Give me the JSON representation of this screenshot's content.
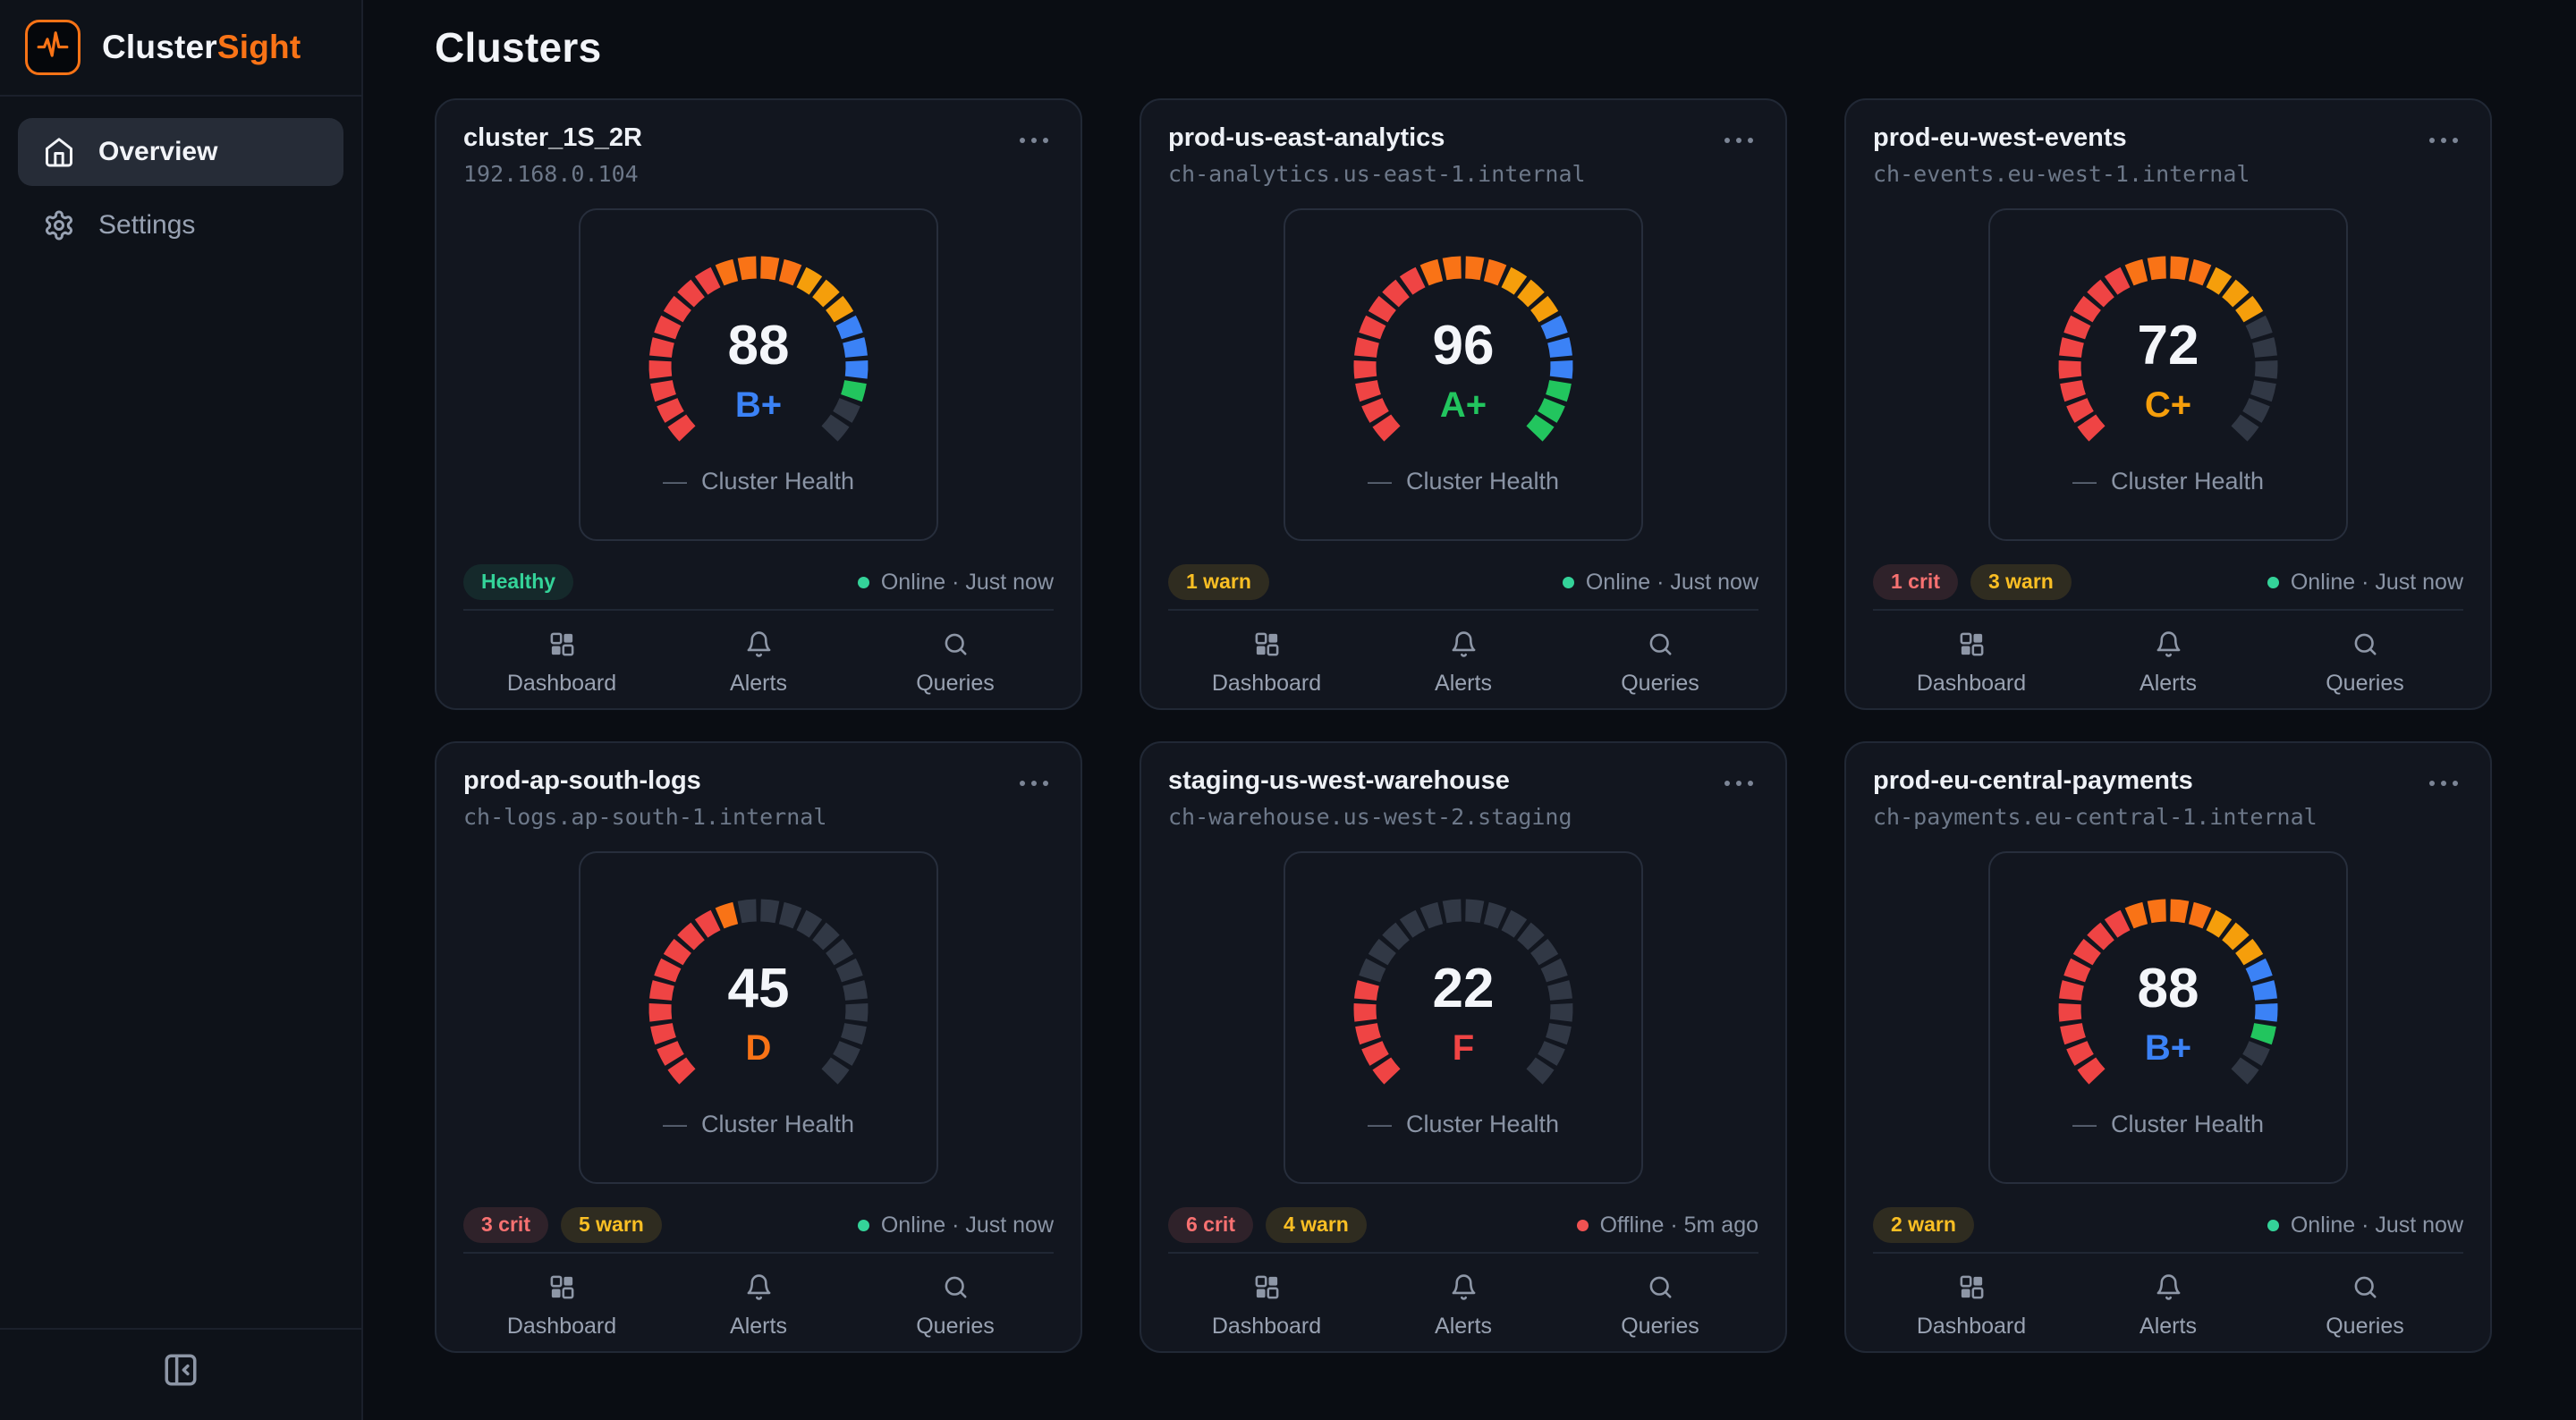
{
  "brand": {
    "name_primary": "Cluster",
    "name_accent": "Sight",
    "accent_color": "#f97316"
  },
  "page": {
    "title": "Clusters"
  },
  "sidebar": {
    "items": [
      {
        "label": "Overview",
        "icon": "home-icon",
        "active": true
      },
      {
        "label": "Settings",
        "icon": "gear-icon",
        "active": false
      }
    ]
  },
  "gauge": {
    "legend_dash": "—",
    "legend": "Cluster Health",
    "segments": 22,
    "arc_degrees": 270,
    "zone_colors": {
      "red": "#ef4444",
      "orange": "#f97316",
      "amber": "#f59e0b",
      "blue": "#3b82f6",
      "green": "#22c55e",
      "empty": "#313845"
    },
    "zone_stops": [
      {
        "until": 0.4,
        "color": "red"
      },
      {
        "until": 0.58,
        "color": "orange"
      },
      {
        "until": 0.72,
        "color": "amber"
      },
      {
        "until": 0.86,
        "color": "blue"
      },
      {
        "until": 1.01,
        "color": "green"
      }
    ]
  },
  "grade_colors": {
    "A+": "#22c55e",
    "B+": "#3b82f6",
    "C+": "#f59e0b",
    "D": "#f97316",
    "F": "#ef4444"
  },
  "status_colors": {
    "online": "#34d399",
    "offline": "#f05252"
  },
  "actions": [
    {
      "label": "Dashboard",
      "icon": "dashboard-icon"
    },
    {
      "label": "Alerts",
      "icon": "bell-icon"
    },
    {
      "label": "Queries",
      "icon": "search-icon"
    }
  ],
  "clusters": [
    {
      "name": "cluster_1S_2R",
      "host": "192.168.0.104",
      "score": 88,
      "grade": "B+",
      "badges": [
        {
          "label": "Healthy",
          "type": "healthy"
        }
      ],
      "status": {
        "text": "Online · Just now",
        "online": true
      }
    },
    {
      "name": "prod-us-east-analytics",
      "host": "ch-analytics.us-east-1.internal",
      "score": 96,
      "grade": "A+",
      "badges": [
        {
          "label": "1 warn",
          "type": "warn"
        }
      ],
      "status": {
        "text": "Online · Just now",
        "online": true
      }
    },
    {
      "name": "prod-eu-west-events",
      "host": "ch-events.eu-west-1.internal",
      "score": 72,
      "grade": "C+",
      "badges": [
        {
          "label": "1 crit",
          "type": "crit"
        },
        {
          "label": "3 warn",
          "type": "warn"
        }
      ],
      "status": {
        "text": "Online · Just now",
        "online": true
      }
    },
    {
      "name": "prod-ap-south-logs",
      "host": "ch-logs.ap-south-1.internal",
      "score": 45,
      "grade": "D",
      "badges": [
        {
          "label": "3 crit",
          "type": "crit"
        },
        {
          "label": "5 warn",
          "type": "warn"
        }
      ],
      "status": {
        "text": "Online · Just now",
        "online": true
      }
    },
    {
      "name": "staging-us-west-warehouse",
      "host": "ch-warehouse.us-west-2.staging",
      "score": 22,
      "grade": "F",
      "badges": [
        {
          "label": "6 crit",
          "type": "crit"
        },
        {
          "label": "4 warn",
          "type": "warn"
        }
      ],
      "status": {
        "text": "Offline · 5m ago",
        "online": false
      }
    },
    {
      "name": "prod-eu-central-payments",
      "host": "ch-payments.eu-central-1.internal",
      "score": 88,
      "grade": "B+",
      "badges": [
        {
          "label": "2 warn",
          "type": "warn"
        }
      ],
      "status": {
        "text": "Online · Just now",
        "online": true
      }
    }
  ]
}
